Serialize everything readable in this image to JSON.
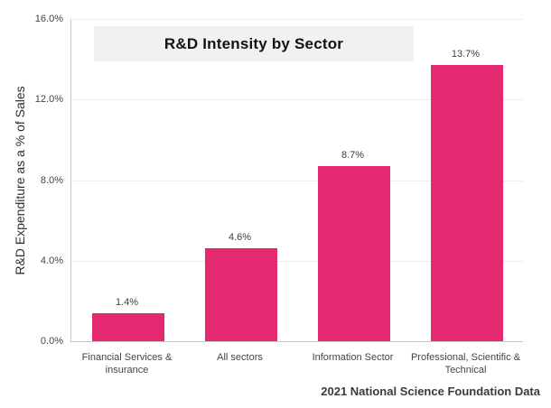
{
  "chart_data": {
    "type": "bar",
    "title": "R&D Intensity by Sector",
    "categories": [
      "Financial Services & insurance",
      "All sectors",
      "Information Sector",
      "Professional, Scientific & Technical"
    ],
    "values": [
      1.4,
      4.6,
      8.7,
      13.7
    ],
    "data_labels": [
      "1.4%",
      "4.6%",
      "8.7%",
      "13.7%"
    ],
    "xlabel": "",
    "ylabel": "R&D Expenditure as a % of Sales",
    "ylim": [
      0,
      16
    ],
    "yticks": [
      {
        "value": 0,
        "label": "0.0%"
      },
      {
        "value": 4,
        "label": "4.0%"
      },
      {
        "value": 8,
        "label": "8.0%"
      },
      {
        "value": 12,
        "label": "12.0%"
      },
      {
        "value": 16,
        "label": "16.0%"
      }
    ],
    "grid": true,
    "legend": "none",
    "source_note": "2021 National Science Foundation Data"
  },
  "colors": {
    "bar": "#E42970",
    "banner_background": "#F1F1F1",
    "gridline": "#EDEDED",
    "axis_line": "#C8C8C8",
    "label_text": "#3D3D3D"
  }
}
